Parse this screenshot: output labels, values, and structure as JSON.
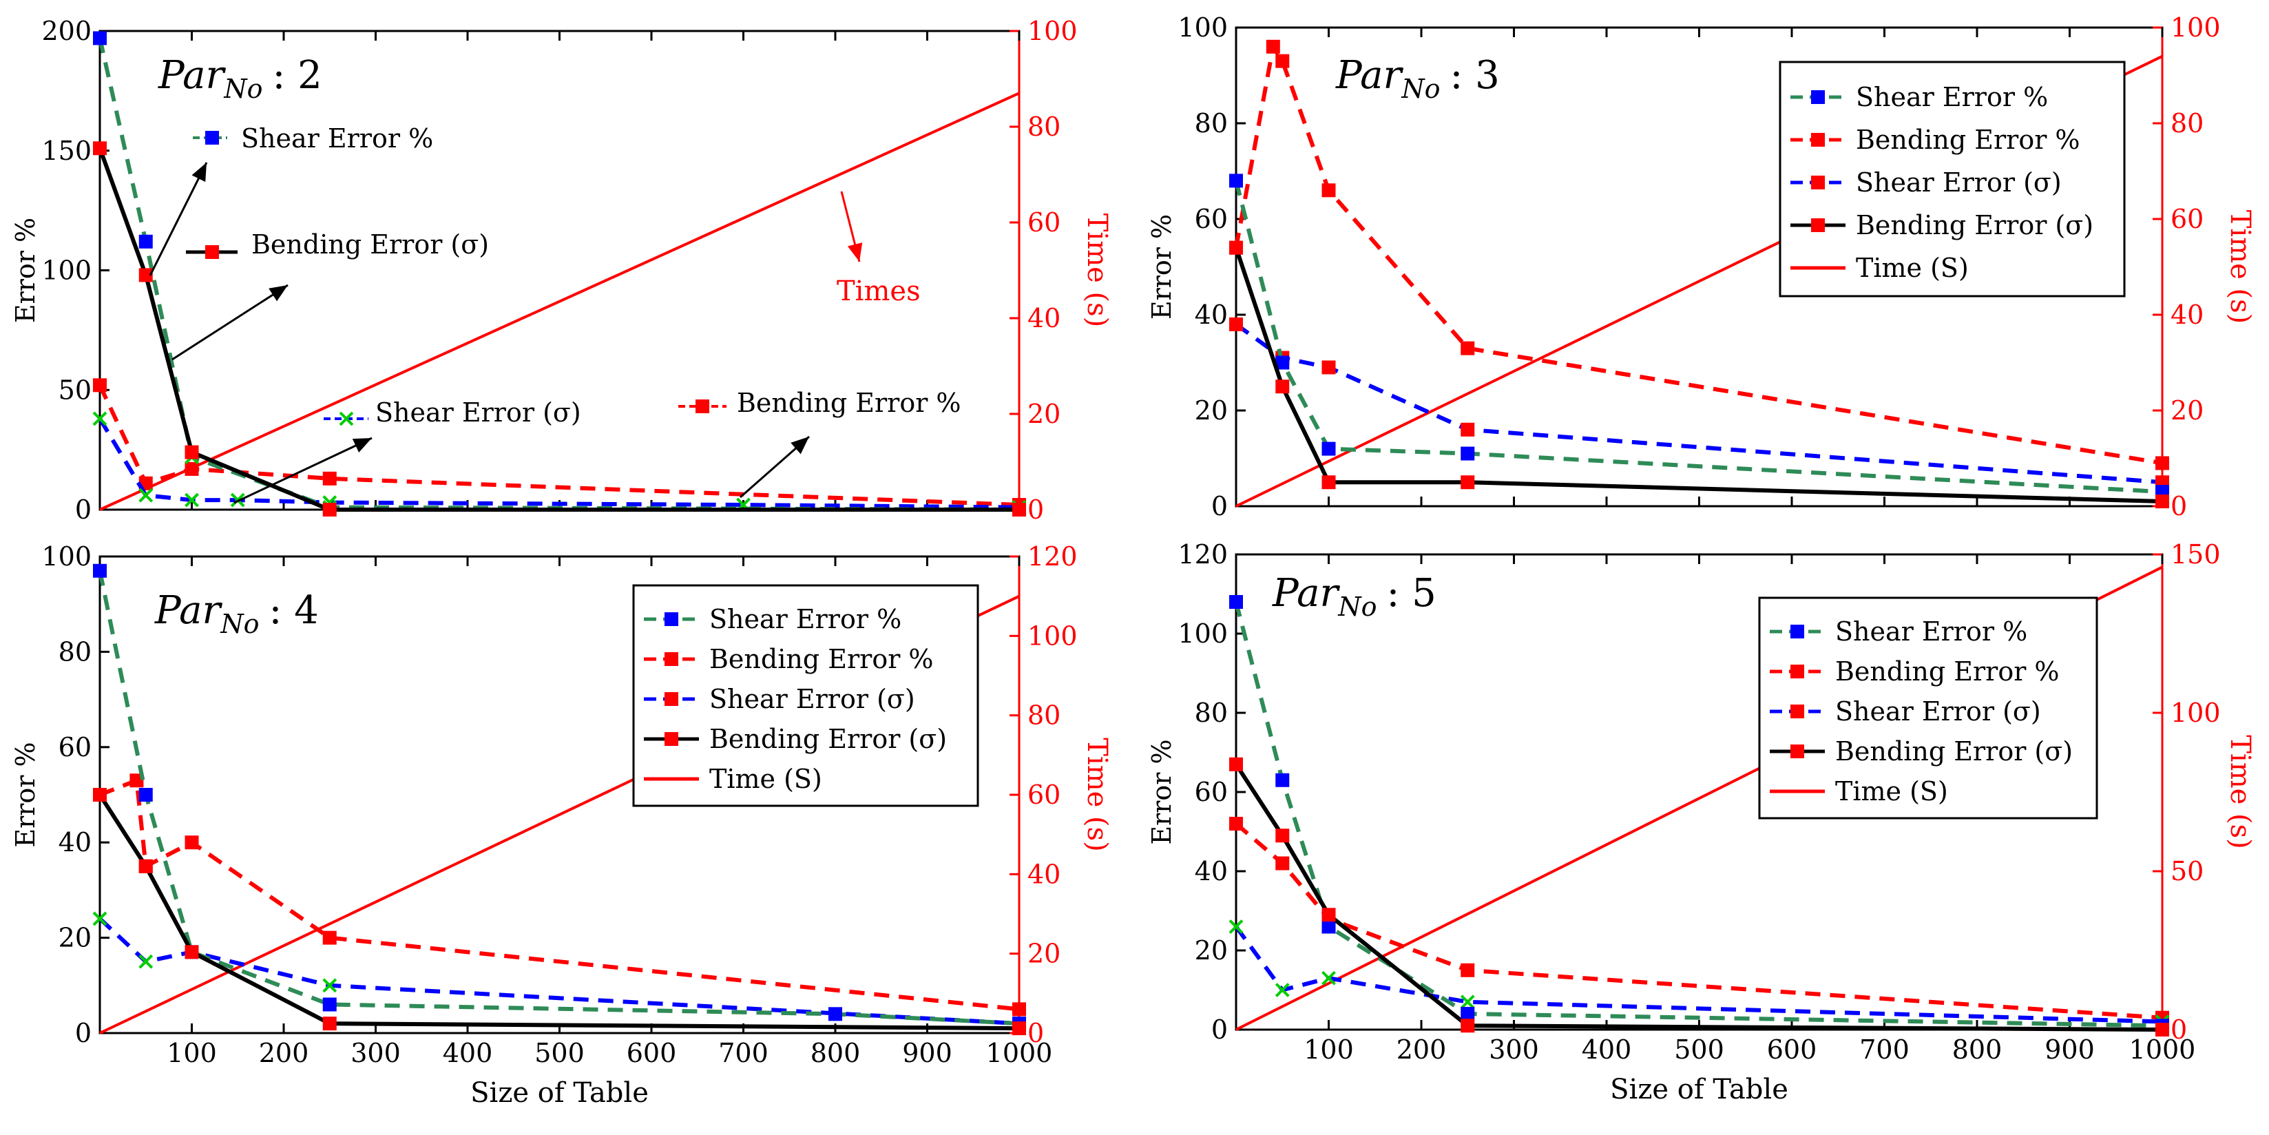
{
  "colors": {
    "shear_pct": "#2e8b57",
    "bending_pct": "#ff0000",
    "shear_sigma": "#0000ff",
    "bending_sigma": "#000000",
    "time": "#ff0000",
    "marker_blue": "#0000ff",
    "marker_red": "#ff0000",
    "marker_green": "#00cc00"
  },
  "chart_data": [
    {
      "type": "line",
      "title": "Par_No : 2",
      "title_main": "Par",
      "title_sub": "No",
      "title_tail": ": 2",
      "ylabel": "Error %",
      "y2label": "Time (s)",
      "xlabel": "",
      "xlim": [
        0,
        1000
      ],
      "ylim": [
        0,
        200
      ],
      "y2lim": [
        0,
        100
      ],
      "xticks": [],
      "yticks": [
        "0",
        "50",
        "100",
        "150",
        "200"
      ],
      "y2ticks": [
        "0",
        "20",
        "40",
        "60",
        "80",
        "100"
      ],
      "legend": "annotated",
      "series": [
        {
          "name": "Shear Error %",
          "x": [
            0,
            50,
            100,
            250,
            1000
          ],
          "y": [
            197,
            112,
            22,
            1,
            0
          ]
        },
        {
          "name": "Bending Error %",
          "x": [
            0,
            50,
            100,
            250,
            1000
          ],
          "y": [
            52,
            11,
            17,
            13,
            2
          ]
        },
        {
          "name": "Shear Error (σ)",
          "x": [
            0,
            50,
            100,
            150,
            250,
            700,
            1000
          ],
          "y": [
            38,
            6,
            4,
            4,
            3,
            2,
            1
          ]
        },
        {
          "name": "Bending Error (σ)",
          "x": [
            0,
            50,
            100,
            250,
            1000
          ],
          "y": [
            151,
            98,
            24,
            0,
            0
          ]
        },
        {
          "name": "Times",
          "x": [
            0,
            1000
          ],
          "y2": [
            0,
            87
          ]
        }
      ],
      "annotations": [
        {
          "text": "Shear Error %"
        },
        {
          "text": "Bending Error (σ)"
        },
        {
          "text": "Times"
        },
        {
          "text": "Shear Error (σ)"
        },
        {
          "text": "Bending Error %"
        }
      ]
    },
    {
      "type": "line",
      "title": "Par_No : 3",
      "title_main": "Par",
      "title_sub": "No",
      "title_tail": ": 3",
      "ylabel": "Error %",
      "y2label": "Time (s)",
      "xlabel": "",
      "xlim": [
        0,
        1000
      ],
      "ylim": [
        0,
        100
      ],
      "y2lim": [
        0,
        100
      ],
      "xticks": [],
      "yticks": [
        "0",
        "20",
        "40",
        "60",
        "80",
        "100"
      ],
      "y2ticks": [
        "0",
        "20",
        "40",
        "60",
        "80",
        "100"
      ],
      "legend": "top-right",
      "series": [
        {
          "name": "Shear Error %",
          "x": [
            0,
            50,
            100,
            250,
            1000
          ],
          "y": [
            68,
            30,
            12,
            11,
            3
          ]
        },
        {
          "name": "Bending Error %",
          "x": [
            0,
            40,
            50,
            100,
            250,
            1000
          ],
          "y": [
            54,
            96,
            93,
            66,
            33,
            9
          ]
        },
        {
          "name": "Shear Error (σ)",
          "x": [
            0,
            50,
            100,
            250,
            1000
          ],
          "y": [
            38,
            31,
            29,
            16,
            5
          ]
        },
        {
          "name": "Bending Error (σ)",
          "x": [
            0,
            50,
            100,
            250,
            1000
          ],
          "y": [
            54,
            25,
            5,
            5,
            1
          ]
        },
        {
          "name": "Time (S)",
          "x": [
            0,
            1000
          ],
          "y2": [
            0,
            94
          ]
        }
      ],
      "legend_entries": [
        "Shear Error %",
        "Bending Error %",
        "Shear Error (σ)",
        "Bending Error (σ)",
        "Time (S)"
      ]
    },
    {
      "type": "line",
      "title": "Par_No : 4",
      "title_main": "Par",
      "title_sub": "No",
      "title_tail": ": 4",
      "ylabel": "Error %",
      "y2label": "Time (s)",
      "xlabel": "Size of Table",
      "xlim": [
        0,
        1000
      ],
      "ylim": [
        0,
        100
      ],
      "y2lim": [
        0,
        120
      ],
      "xticks": [
        "100",
        "200",
        "300",
        "400",
        "500",
        "600",
        "700",
        "800",
        "900",
        "1000"
      ],
      "yticks": [
        "0",
        "20",
        "40",
        "60",
        "80",
        "100"
      ],
      "y2ticks": [
        "0",
        "20",
        "40",
        "60",
        "80",
        "100",
        "120"
      ],
      "legend": "top-right",
      "series": [
        {
          "name": "Shear Error %",
          "x": [
            0,
            50,
            100,
            250,
            800,
            1000
          ],
          "y": [
            97,
            50,
            17,
            6,
            4,
            2
          ]
        },
        {
          "name": "Bending Error %",
          "x": [
            0,
            40,
            50,
            100,
            250,
            1000
          ],
          "y": [
            50,
            53,
            35,
            40,
            20,
            5
          ]
        },
        {
          "name": "Shear Error (σ)",
          "x": [
            0,
            50,
            100,
            250,
            1000
          ],
          "y": [
            24,
            15,
            17,
            10,
            2
          ]
        },
        {
          "name": "Bending Error (σ)",
          "x": [
            0,
            50,
            100,
            250,
            1000
          ],
          "y": [
            50,
            35,
            17,
            2,
            1
          ]
        },
        {
          "name": "Time (S)",
          "x": [
            0,
            1000
          ],
          "y2": [
            0,
            110
          ]
        }
      ],
      "legend_entries": [
        "Shear Error %",
        "Bending Error %",
        "Shear Error (σ)",
        "Bending Error (σ)",
        "Time (S)"
      ]
    },
    {
      "type": "line",
      "title": "Par_No : 5",
      "title_main": "Par",
      "title_sub": "No",
      "title_tail": ": 5",
      "ylabel": "Error %",
      "y2label": "Time (s)",
      "xlabel": "Size of Table",
      "xlim": [
        0,
        1000
      ],
      "ylim": [
        0,
        120
      ],
      "y2lim": [
        0,
        150
      ],
      "xticks": [
        "100",
        "200",
        "300",
        "400",
        "500",
        "600",
        "700",
        "800",
        "900",
        "1000"
      ],
      "yticks": [
        "0",
        "20",
        "40",
        "60",
        "80",
        "100",
        "120"
      ],
      "y2ticks": [
        "0",
        "50",
        "100",
        "150"
      ],
      "legend": "top-right",
      "series": [
        {
          "name": "Shear Error %",
          "x": [
            0,
            50,
            100,
            250,
            1000
          ],
          "y": [
            108,
            63,
            26,
            4,
            1
          ]
        },
        {
          "name": "Bending Error %",
          "x": [
            0,
            50,
            100,
            250,
            1000
          ],
          "y": [
            52,
            42,
            28,
            15,
            3
          ]
        },
        {
          "name": "Shear Error (σ)",
          "x": [
            0,
            50,
            100,
            250,
            1000
          ],
          "y": [
            26,
            10,
            13,
            7,
            2
          ]
        },
        {
          "name": "Bending Error (σ)",
          "x": [
            0,
            50,
            100,
            250,
            1000
          ],
          "y": [
            67,
            49,
            29,
            1,
            0
          ]
        },
        {
          "name": "Time (S)",
          "x": [
            0,
            1000
          ],
          "y2": [
            0,
            146
          ]
        }
      ],
      "legend_entries": [
        "Shear Error %",
        "Bending Error %",
        "Shear Error (σ)",
        "Bending Error (σ)",
        "Time (S)"
      ]
    }
  ]
}
